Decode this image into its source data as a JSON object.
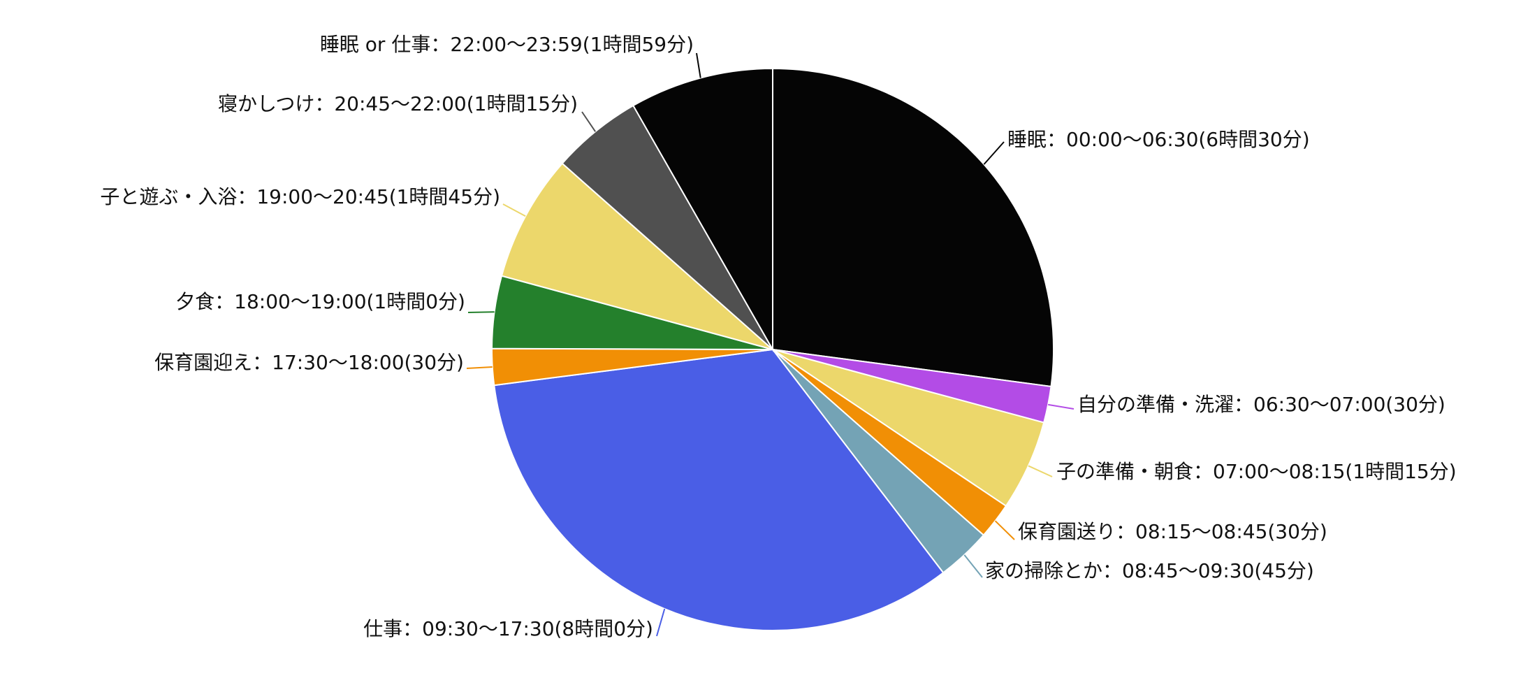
{
  "chart_data": {
    "type": "pie",
    "title": "",
    "unit": "minutes",
    "start_angle_clock": "12 o'clock",
    "direction": "clockwise",
    "legend": "none",
    "slices": [
      {
        "label": "睡眠：00:00〜06:30(6時間30分)",
        "value": 390,
        "color": "#050505",
        "leader_color": "#050505"
      },
      {
        "label": "自分の準備・洗濯：06:30〜07:00(30分)",
        "value": 30,
        "color": "#b34ce6",
        "leader_color": "#b34ce6"
      },
      {
        "label": "子の準備・朝食：07:00〜08:15(1時間15分)",
        "value": 75,
        "color": "#ecd76b",
        "leader_color": "#ecd76b"
      },
      {
        "label": "保育園送り：08:15〜08:45(30分)",
        "value": 30,
        "color": "#f18f05",
        "leader_color": "#f18f05"
      },
      {
        "label": "家の掃除とか：08:45〜09:30(45分)",
        "value": 45,
        "color": "#74a3b5",
        "leader_color": "#74a3b5"
      },
      {
        "label": "仕事：09:30〜17:30(8時間0分)",
        "value": 480,
        "color": "#4a5ee6",
        "leader_color": "#4a5ee6"
      },
      {
        "label": "保育園迎え：17:30〜18:00(30分)",
        "value": 30,
        "color": "#f18f05",
        "leader_color": "#f18f05"
      },
      {
        "label": "夕食：18:00〜19:00(1時間0分)",
        "value": 60,
        "color": "#24802c",
        "leader_color": "#24802c"
      },
      {
        "label": "子と遊ぶ・入浴：19:00〜20:45(1時間45分)",
        "value": 105,
        "color": "#ecd76b",
        "leader_color": "#ecd76b"
      },
      {
        "label": "寝かしつけ：20:45〜22:00(1時間15分)",
        "value": 75,
        "color": "#505050",
        "leader_color": "#505050"
      },
      {
        "label": "睡眠 or 仕事：22:00〜23:59(1時間59分)",
        "value": 119,
        "color": "#050505",
        "leader_color": "#050505"
      }
    ]
  }
}
